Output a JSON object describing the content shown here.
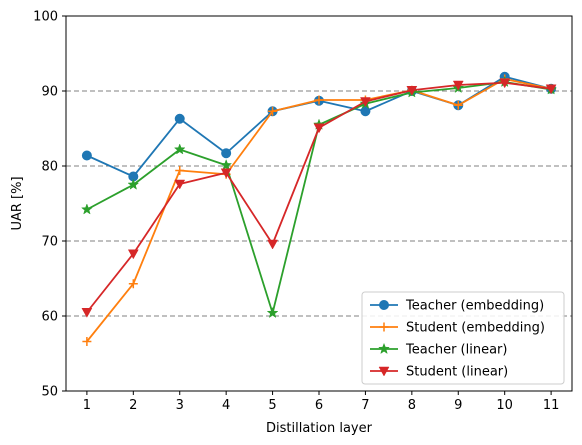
{
  "chart_data": {
    "type": "line",
    "xlabel": "Distillation layer",
    "ylabel": "UAR [%]",
    "x": [
      1,
      2,
      3,
      4,
      5,
      6,
      7,
      8,
      9,
      10,
      11
    ],
    "xticks": [
      "1",
      "2",
      "3",
      "4",
      "5",
      "6",
      "7",
      "8",
      "9",
      "10",
      "11"
    ],
    "ylim": [
      50,
      100
    ],
    "yticks": [
      50,
      60,
      70,
      80,
      90,
      100
    ],
    "grid": "dashed horizontal at 60, 70, 80, 90",
    "legend_position": "bottom-right",
    "series": [
      {
        "name": "Teacher (embedding)",
        "color": "#1f77b4",
        "marker": "circle",
        "values": [
          81.4,
          78.6,
          86.3,
          81.7,
          87.3,
          88.7,
          87.3,
          90.0,
          88.1,
          91.9,
          90.3
        ]
      },
      {
        "name": "Student (embedding)",
        "color": "#ff7f0e",
        "marker": "plus",
        "values": [
          56.6,
          64.3,
          79.4,
          78.9,
          87.3,
          88.8,
          88.8,
          90.1,
          88.1,
          91.6,
          90.3
        ]
      },
      {
        "name": "Teacher (linear)",
        "color": "#2ca02c",
        "marker": "star",
        "values": [
          74.2,
          77.5,
          82.2,
          80.1,
          60.4,
          85.5,
          88.3,
          89.8,
          90.4,
          91.2,
          90.2
        ]
      },
      {
        "name": "Student (linear)",
        "color": "#d62728",
        "marker": "triangle-down",
        "values": [
          60.5,
          68.3,
          77.6,
          79.1,
          69.6,
          85.1,
          88.6,
          90.1,
          90.8,
          91.1,
          90.3
        ]
      }
    ]
  }
}
